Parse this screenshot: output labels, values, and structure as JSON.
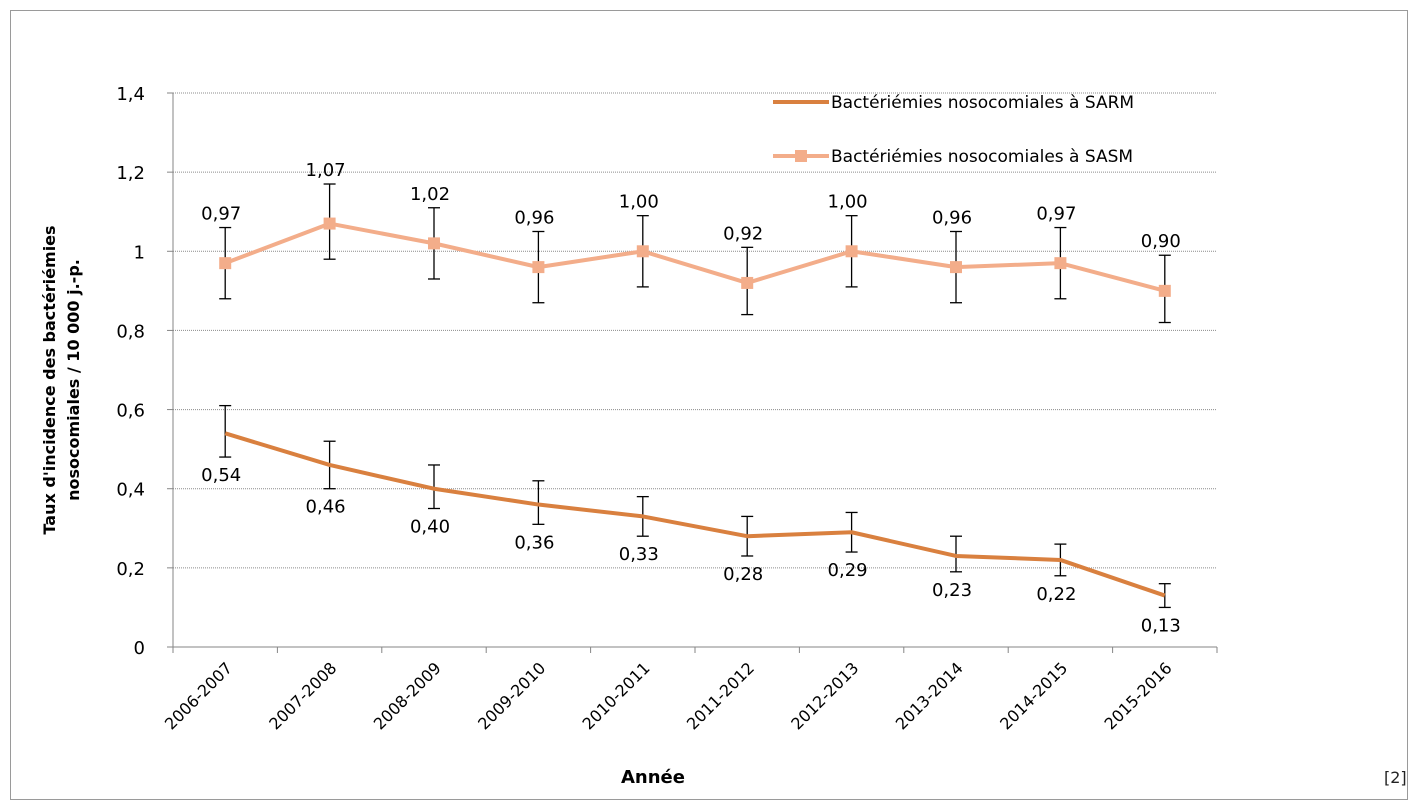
{
  "chart_data": {
    "type": "line",
    "title": "",
    "xlabel": "Année",
    "ylabel_lines": [
      "Taux d'incidence des bactériémies",
      "nosocomiales  / 10 000 j.-p."
    ],
    "categories": [
      "2006-2007",
      "2007-2008",
      "2008-2009",
      "2009-2010",
      "2010-2011",
      "2011-2012",
      "2012-2013",
      "2013-2014",
      "2014-2015",
      "2015-2016"
    ],
    "ylim": [
      0,
      1.4
    ],
    "yticks": [
      0,
      0.2,
      0.4,
      0.6,
      0.8,
      1,
      1.2,
      1.4
    ],
    "ytick_labels": [
      "0",
      "0,2",
      "0,4",
      "0,6",
      "0,8",
      "1",
      "1,2",
      "1,4"
    ],
    "grid": true,
    "legend_position": "top-right",
    "series": [
      {
        "name": "Bactériémies nosocomiales à SARM",
        "color": "#d9803f",
        "marker": "none",
        "values": [
          0.54,
          0.46,
          0.4,
          0.36,
          0.33,
          0.28,
          0.29,
          0.23,
          0.22,
          0.13
        ],
        "labels": [
          "0,54",
          "0,46",
          "0,40",
          "0,36",
          "0,33",
          "0,28",
          "0,29",
          "0,23",
          "0,22",
          "0,13"
        ],
        "error_low": [
          0.48,
          0.4,
          0.35,
          0.31,
          0.28,
          0.23,
          0.24,
          0.19,
          0.18,
          0.1
        ],
        "error_high": [
          0.61,
          0.52,
          0.46,
          0.42,
          0.38,
          0.33,
          0.34,
          0.28,
          0.26,
          0.16
        ],
        "label_position": "below"
      },
      {
        "name": "Bactériémies nosocomiales à SASM",
        "color": "#f3ad8a",
        "marker": "square",
        "values": [
          0.97,
          1.07,
          1.02,
          0.96,
          1.0,
          0.92,
          1.0,
          0.96,
          0.97,
          0.9
        ],
        "labels": [
          "0,97",
          "1,07",
          "1,02",
          "0,96",
          "1,00",
          "0,92",
          "1,00",
          "0,96",
          "0,97",
          "0,90"
        ],
        "error_low": [
          0.88,
          0.98,
          0.93,
          0.87,
          0.91,
          0.84,
          0.91,
          0.87,
          0.88,
          0.82
        ],
        "error_high": [
          1.06,
          1.17,
          1.11,
          1.05,
          1.09,
          1.01,
          1.09,
          1.05,
          1.06,
          0.99
        ],
        "label_position": "above"
      }
    ]
  },
  "footnote": "[2]"
}
